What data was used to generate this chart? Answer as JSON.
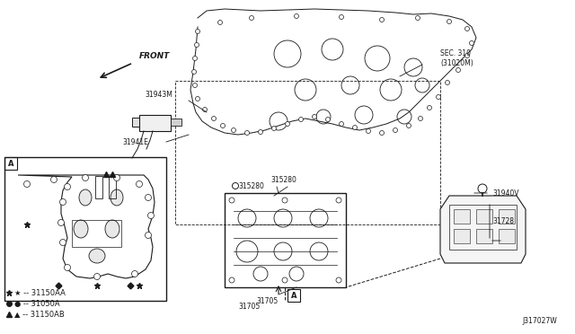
{
  "bg_color": "#ffffff",
  "fig_width": 6.4,
  "fig_height": 3.72,
  "dpi": 100,
  "labels": {
    "front": "FRONT",
    "part1": "31943M",
    "part2": "31941E",
    "part3": "SEC. 310\n(31020M)",
    "part4": "315280",
    "part5": "31705",
    "part6": "31940V",
    "part7": "31728",
    "legend1": "★ -- 31150AA",
    "legend2": "● -- 31050A",
    "legend3": "▲ -- 31150AB",
    "box_label": "A",
    "box_label2": "A",
    "diagram_id": "J317027W"
  },
  "text_color": "#1a1a1a",
  "line_color": "#1a1a1a",
  "font_size_small": 5.5,
  "font_size_medium": 6.5,
  "font_size_legend": 6.0
}
